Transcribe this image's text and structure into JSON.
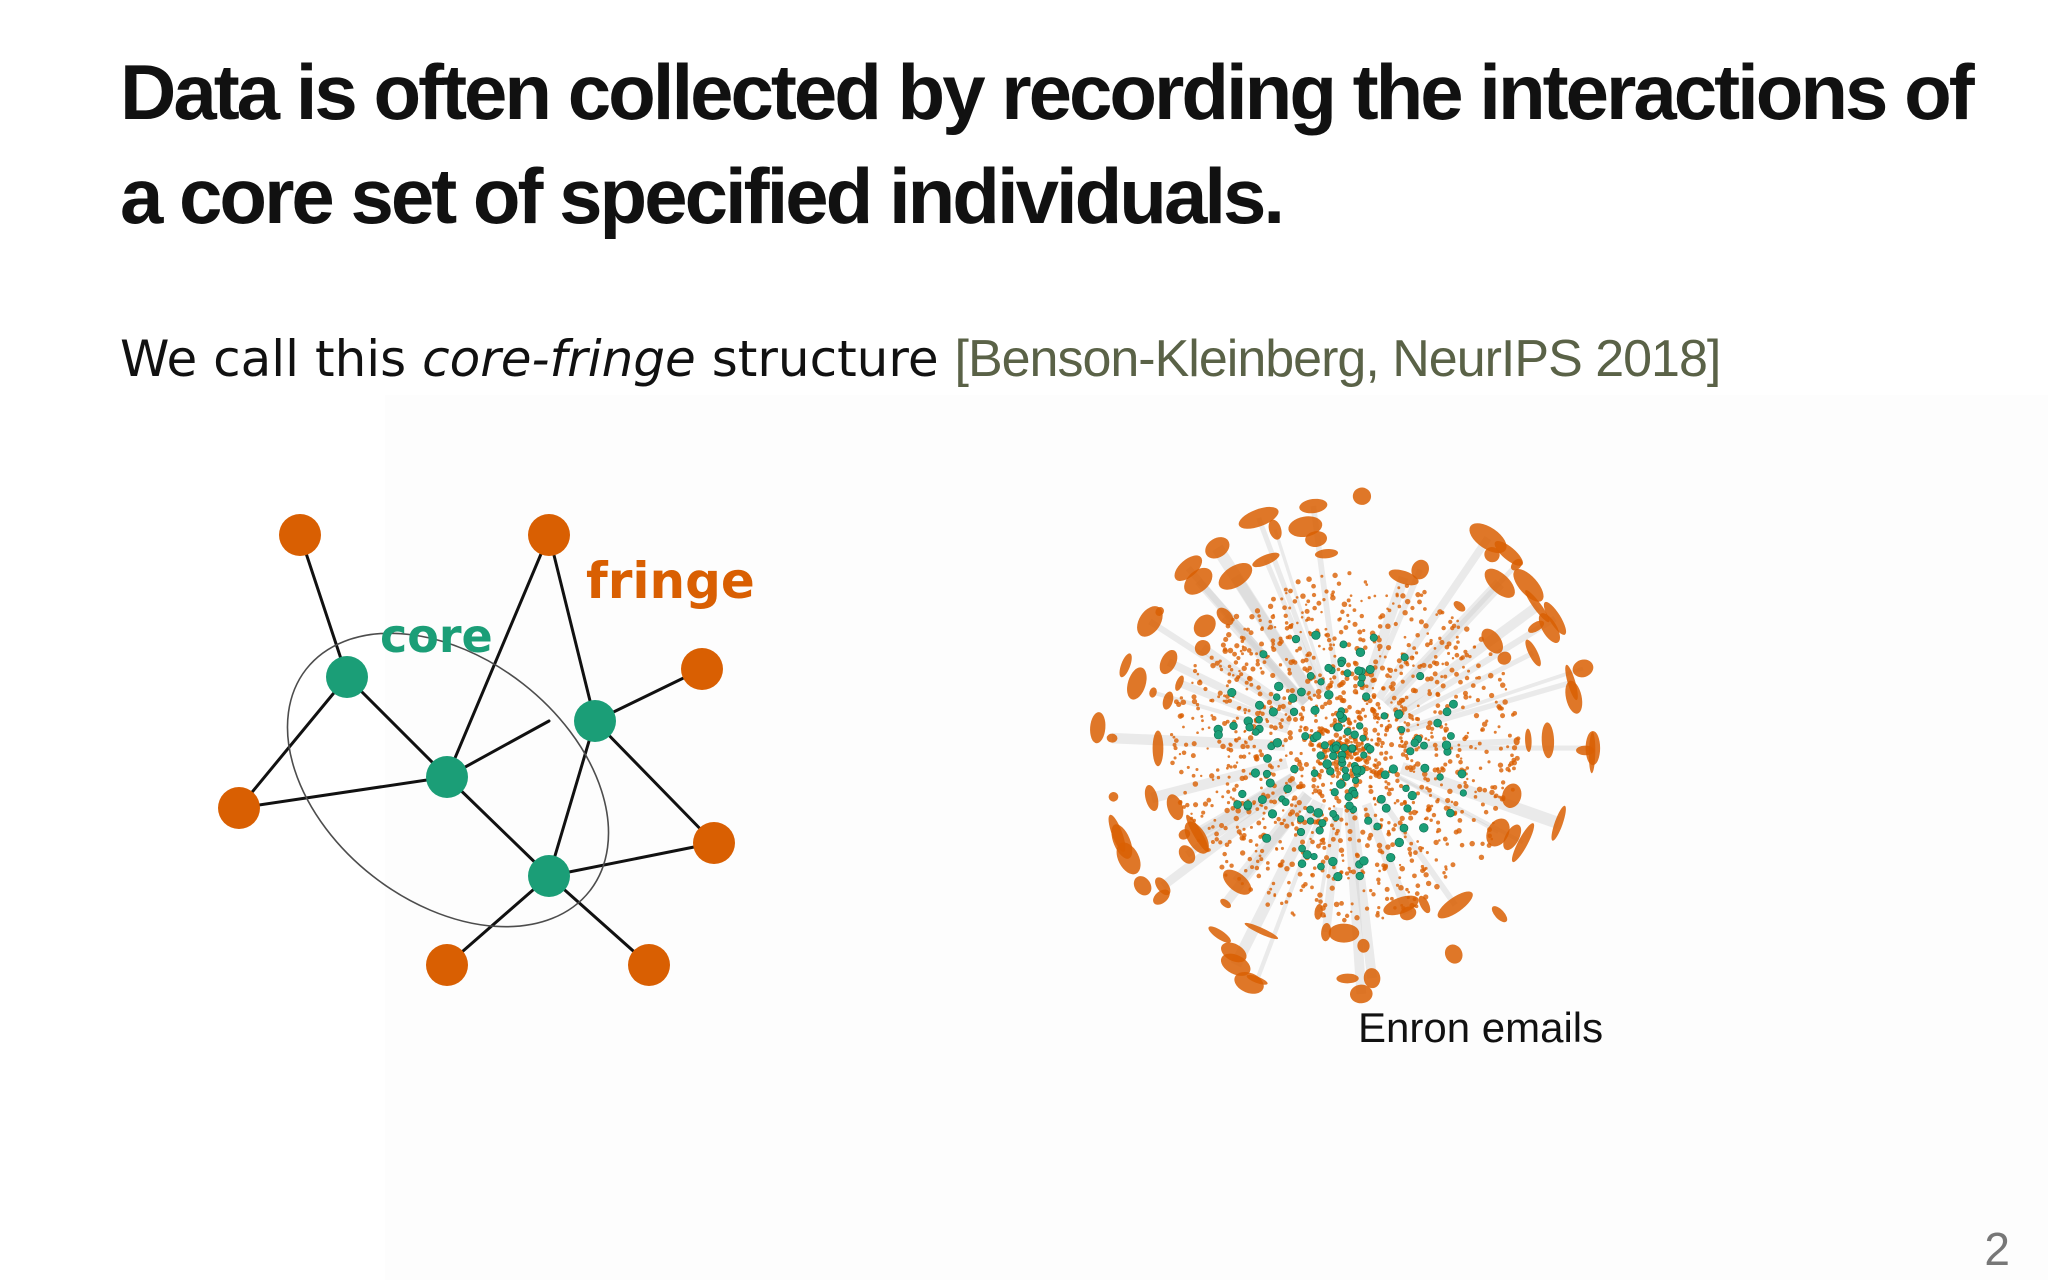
{
  "slide": {
    "title": "Data is often collected by recording the interactions of a core set of specified individuals.",
    "subtitle": {
      "prefix": "We call this ",
      "emphasis": "core-fringe",
      "suffix": " structure ",
      "citation": "[Benson-Kleinberg, NeurIPS 2018]"
    },
    "diagram": {
      "core_label": "core",
      "fringe_label": "fringe"
    },
    "enron_caption": "Enron emails",
    "page_number": "2"
  },
  "colors": {
    "core": "#1b9e77",
    "fringe": "#d95f02",
    "citation": "#5a6247",
    "edge": "#111111"
  }
}
